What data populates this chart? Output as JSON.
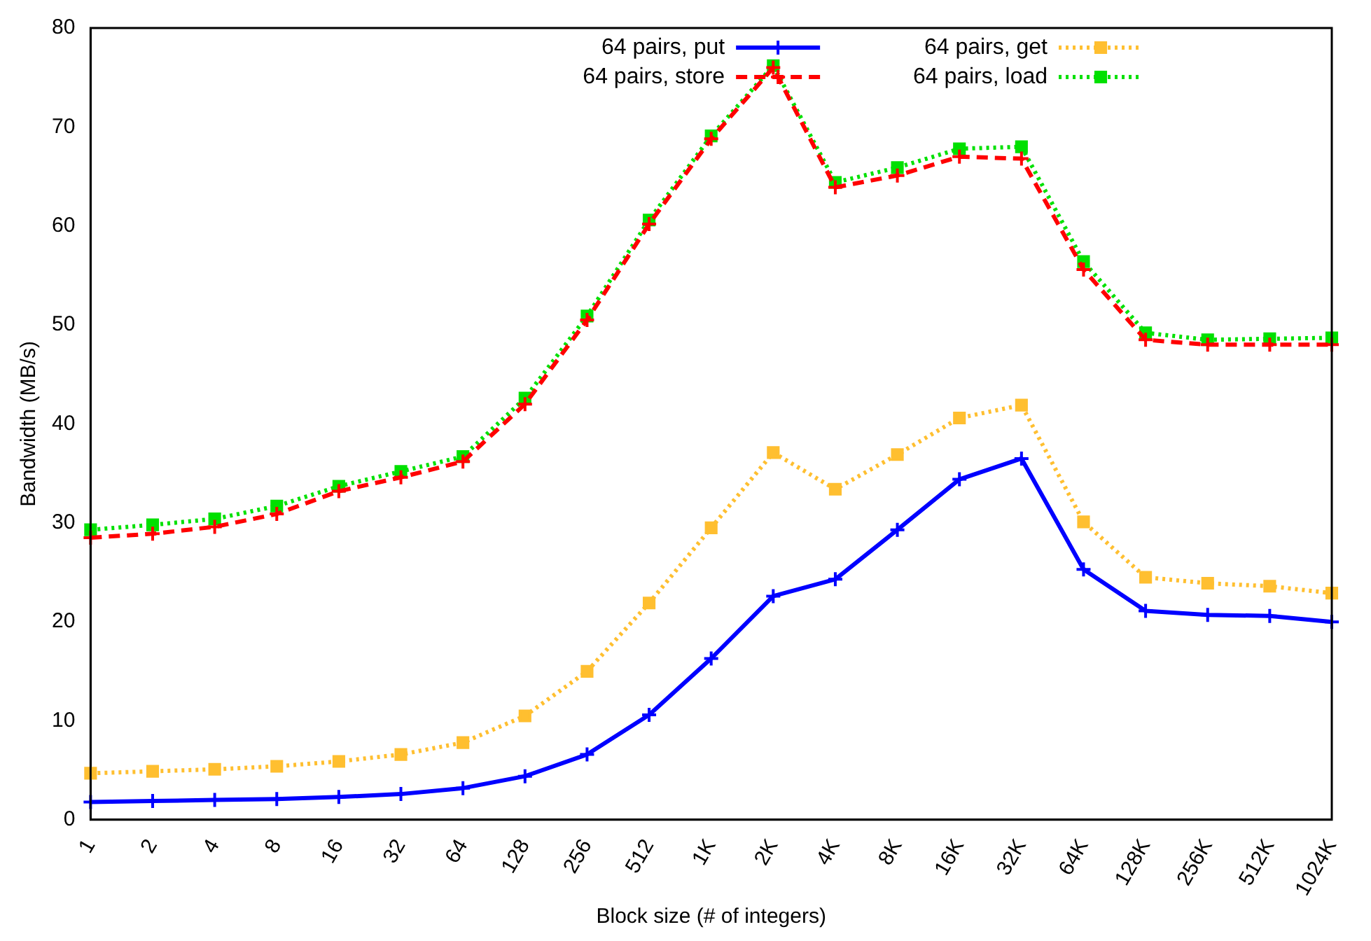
{
  "chart_data": {
    "type": "line",
    "xlabel": "Block size (# of integers)",
    "ylabel": "Bandwidth (MB/s)",
    "categories": [
      "1",
      "2",
      "4",
      "8",
      "16",
      "32",
      "64",
      "128",
      "256",
      "512",
      "1K",
      "2K",
      "4K",
      "8K",
      "16K",
      "32K",
      "64K",
      "128K",
      "256K",
      "512K",
      "1024K"
    ],
    "ylim": [
      0,
      80
    ],
    "yticks": [
      0,
      10,
      20,
      30,
      40,
      50,
      60,
      70,
      80
    ],
    "grid": false,
    "legend": "top",
    "series": [
      {
        "name": "64 pairs, put",
        "color": "#0000ff",
        "line_style": "solid",
        "marker": "cross",
        "values": [
          1.8,
          1.9,
          2.0,
          2.1,
          2.3,
          2.6,
          3.2,
          4.4,
          6.6,
          10.6,
          16.3,
          22.6,
          24.3,
          29.3,
          34.4,
          36.5,
          25.3,
          21.1,
          20.7,
          20.6,
          20.0
        ]
      },
      {
        "name": "64 pairs, store",
        "color": "#ff0000",
        "line_style": "dashed",
        "marker": "cross",
        "values": [
          28.5,
          28.9,
          29.6,
          30.9,
          33.2,
          34.6,
          36.2,
          42.0,
          50.5,
          60.2,
          68.8,
          76.0,
          63.9,
          65.1,
          67.0,
          66.8,
          55.6,
          48.5,
          48.0,
          48.0,
          48.0
        ]
      },
      {
        "name": "64 pairs, get",
        "color": "#ffbf30",
        "line_style": "dotted",
        "marker": "square",
        "values": [
          4.7,
          4.9,
          5.1,
          5.4,
          5.9,
          6.6,
          7.8,
          10.5,
          15.0,
          21.9,
          29.5,
          37.1,
          33.4,
          36.9,
          40.6,
          41.9,
          30.1,
          24.5,
          23.9,
          23.6,
          22.9
        ]
      },
      {
        "name": "64 pairs, load",
        "color": "#00e000",
        "line_style": "dotted",
        "marker": "square",
        "values": [
          29.3,
          29.8,
          30.4,
          31.7,
          33.7,
          35.2,
          36.7,
          42.6,
          50.9,
          60.6,
          69.1,
          76.2,
          64.4,
          65.9,
          67.8,
          68.0,
          56.4,
          49.2,
          48.5,
          48.6,
          48.7
        ]
      }
    ]
  }
}
